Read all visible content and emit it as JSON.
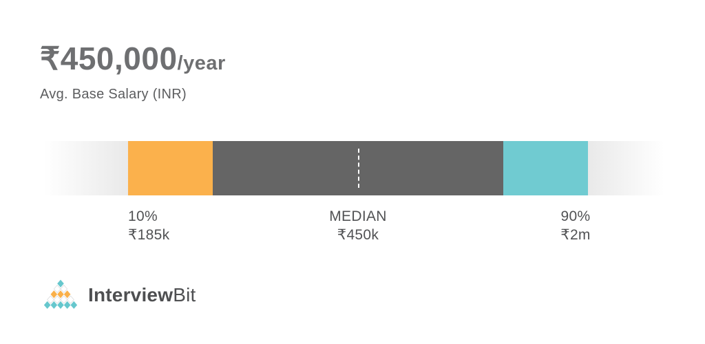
{
  "header": {
    "amount": "₹450,000",
    "period": "/year",
    "subtitle": "Avg. Base Salary (INR)"
  },
  "chart_data": {
    "type": "range-bar",
    "title": "₹450,000/year",
    "subtitle": "Avg. Base Salary (INR)",
    "currency": "INR",
    "average_base_salary": 450000,
    "percentiles": [
      {
        "tier": "10%",
        "display_value": "₹185k",
        "value": 185000
      },
      {
        "tier": "MEDIAN",
        "display_value": "₹450k",
        "value": 450000
      },
      {
        "tier": "90%",
        "display_value": "₹2m",
        "value": 2000000
      }
    ],
    "legend_position": "none",
    "grid": false,
    "segment_colors": {
      "low_percentile": "#fbb14c",
      "mid_range": "#656565",
      "high_percentile": "#70cbd1",
      "edge_fade": "#e9e9e9",
      "median_marker": "#ffffff"
    }
  },
  "labels": {
    "p10": {
      "tier": "10%",
      "value": "₹185k"
    },
    "median": {
      "tier": "MEDIAN",
      "value": "₹450k"
    },
    "p90": {
      "tier": "90%",
      "value": "₹2m"
    }
  },
  "footer": {
    "brand_primary": "Interview",
    "brand_secondary": "Bit"
  },
  "logo": {
    "icon": "interviewbit-pyramid-icon",
    "colors": {
      "teal": "#66c7cd",
      "orange": "#f9b04a",
      "white": "#ffffff",
      "outline": "#d9dadb"
    },
    "pyramid_rows": [
      [
        "teal"
      ],
      [
        "white",
        "white"
      ],
      [
        "orange",
        "orange",
        "orange"
      ],
      [
        "white",
        "white",
        "white",
        "white"
      ],
      [
        "teal",
        "teal",
        "teal",
        "teal",
        "teal"
      ]
    ]
  },
  "colors": {
    "title_text": "#6e6f71",
    "subtitle_text": "#5c5d5f",
    "label_text": "#515254",
    "brand_text": "#4e4f51",
    "background": "#ffffff"
  }
}
